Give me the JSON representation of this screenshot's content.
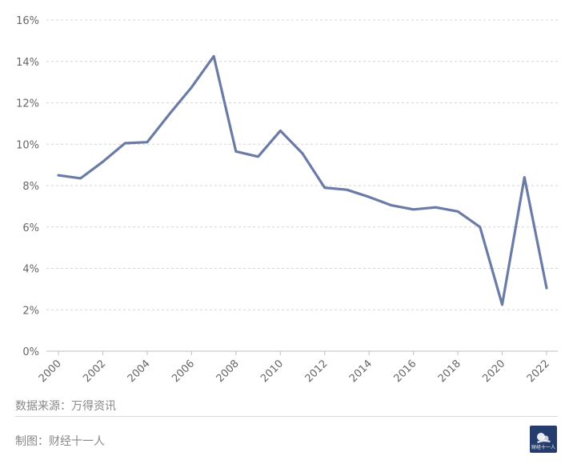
{
  "chart_data": {
    "type": "line",
    "x": [
      "2000",
      "2001",
      "2002",
      "2003",
      "2004",
      "2005",
      "2006",
      "2007",
      "2008",
      "2009",
      "2010",
      "2011",
      "2012",
      "2013",
      "2014",
      "2015",
      "2016",
      "2017",
      "2018",
      "2019",
      "2020",
      "2021",
      "2022"
    ],
    "x_tick_labels": [
      "2000",
      "2002",
      "2004",
      "2006",
      "2008",
      "2010",
      "2012",
      "2014",
      "2016",
      "2018",
      "2020",
      "2022"
    ],
    "series": [
      {
        "values": [
          8.5,
          8.35,
          9.15,
          10.05,
          10.1,
          11.45,
          12.75,
          14.25,
          9.65,
          9.4,
          10.65,
          9.55,
          7.9,
          7.8,
          7.45,
          7.05,
          6.85,
          6.95,
          6.75,
          6.0,
          2.25,
          8.4,
          3.05
        ]
      }
    ],
    "y_tick_labels": [
      "0%",
      "2%",
      "4%",
      "6%",
      "8%",
      "10%",
      "12%",
      "14%",
      "16%"
    ],
    "ylim": [
      0,
      16
    ],
    "y_unit": "%",
    "grid": "horizontal dashed",
    "line_color": "#6a7ca6"
  },
  "footer": {
    "source": "数据来源：万得资讯",
    "credit": "制图：财经十一人",
    "logo_text": "财经十一人"
  },
  "colors": {
    "logo_bg": "#253c6e",
    "grid": "#d4d4d4",
    "axis": "#bfbfbf"
  }
}
